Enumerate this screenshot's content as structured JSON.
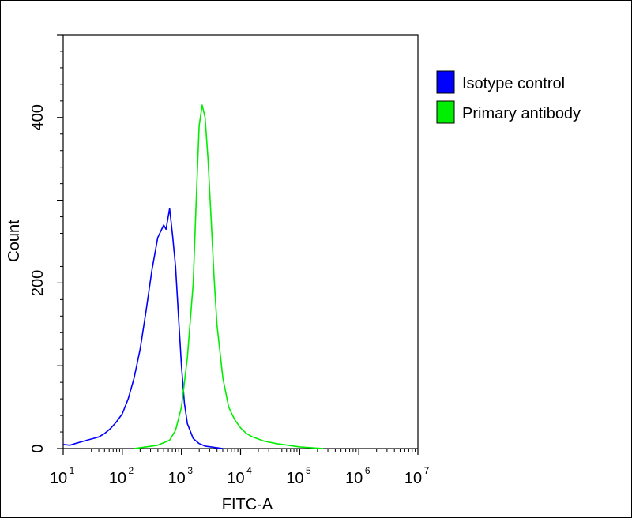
{
  "chart_data": {
    "type": "line",
    "title": "",
    "xlabel": "FITC-A",
    "ylabel": "Count",
    "xscale": "log",
    "xlim": [
      10,
      10000000
    ],
    "ylim": [
      0,
      500
    ],
    "x_tick_labels": [
      {
        "base": "10",
        "exp": "1"
      },
      {
        "base": "10",
        "exp": "2"
      },
      {
        "base": "10",
        "exp": "3"
      },
      {
        "base": "10",
        "exp": "4"
      },
      {
        "base": "10",
        "exp": "5"
      },
      {
        "base": "10",
        "exp": "6"
      },
      {
        "base": "10",
        "exp": "7"
      }
    ],
    "y_ticks": [
      0,
      200,
      400
    ],
    "y_tick_labels": [
      "0",
      "200",
      "400"
    ],
    "grid": false,
    "legend_position": "top-right",
    "series": [
      {
        "name": "Isotype control",
        "color": "#0000ff",
        "x": [
          10,
          13,
          16,
          20,
          25,
          32,
          40,
          50,
          63,
          79,
          100,
          126,
          158,
          200,
          251,
          316,
          398,
          501,
          550,
          631,
          708,
          794,
          891,
          1000,
          1122,
          1259,
          1585,
          1995,
          2512,
          3162,
          5012
        ],
        "y": [
          5,
          4,
          6,
          8,
          10,
          12,
          14,
          18,
          24,
          32,
          42,
          60,
          85,
          120,
          165,
          215,
          255,
          270,
          265,
          290,
          258,
          220,
          160,
          100,
          55,
          30,
          12,
          6,
          3,
          2,
          0
        ]
      },
      {
        "name": "Primary antibody",
        "color": "#00ee00",
        "x": [
          158,
          251,
          398,
          631,
          794,
          1000,
          1259,
          1585,
          1778,
          1995,
          2239,
          2512,
          2818,
          3162,
          3548,
          3981,
          5012,
          6310,
          7943,
          10000,
          12589,
          15849,
          25119,
          39811,
          63096,
          100000,
          251189
        ],
        "y": [
          0,
          2,
          4,
          10,
          22,
          50,
          110,
          200,
          300,
          390,
          415,
          400,
          350,
          280,
          210,
          150,
          85,
          50,
          35,
          25,
          18,
          14,
          9,
          6,
          4,
          2,
          0
        ]
      }
    ]
  }
}
